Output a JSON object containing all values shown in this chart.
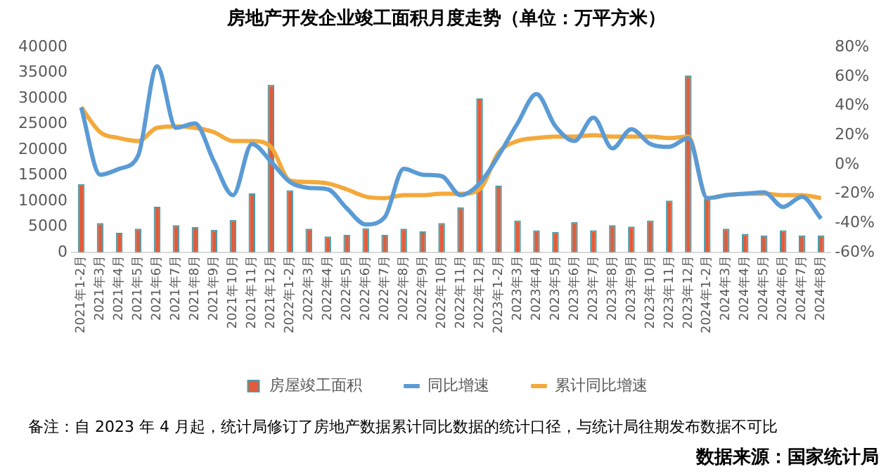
{
  "chart_data": {
    "type": "bar",
    "title": "房地产开发企业竣工面积月度走势（单位：万平方米）",
    "categories": [
      "2021年1-2月",
      "2021年3月",
      "2021年4月",
      "2021年5月",
      "2021年6月",
      "2021年7月",
      "2021年8月",
      "2021年9月",
      "2021年10月",
      "2021年11月",
      "2021年12月",
      "2022年1-2月",
      "2022年3月",
      "2022年4月",
      "2022年5月",
      "2022年6月",
      "2022年7月",
      "2022年8月",
      "2022年9月",
      "2022年10月",
      "2022年11月",
      "2022年12月",
      "2023年1-2月",
      "2023年3月",
      "2023年4月",
      "2023年5月",
      "2023年6月",
      "2023年7月",
      "2023年8月",
      "2023年9月",
      "2023年10月",
      "2023年11月",
      "2023年12月",
      "2024年1-2月",
      "2024年3月",
      "2024年4月",
      "2024年5月",
      "2024年6月",
      "2024年7月",
      "2024年8月"
    ],
    "series": [
      {
        "name": "房屋竣工面积",
        "color": "#e35b3a",
        "values": [
          13300,
          5700,
          3800,
          4600,
          8900,
          5300,
          4900,
          4400,
          6300,
          11500,
          32700,
          12100,
          4600,
          3100,
          3400,
          4700,
          3400,
          4600,
          4100,
          5700,
          8800,
          30000,
          13000,
          6200,
          4300,
          4000,
          5900,
          4300,
          5300,
          5000,
          6200,
          10100,
          34500,
          10400,
          4600,
          3600,
          3300,
          4300,
          3300,
          3300
        ]
      },
      {
        "name": "同比增速",
        "type": "line",
        "axis": "y2",
        "color": "#5b9bd5",
        "values": [
          39,
          -7,
          -3,
          6,
          67,
          25,
          28,
          2,
          -21,
          14,
          2,
          -12,
          -16,
          -17,
          -30,
          -41,
          -36,
          -3,
          -7,
          -8,
          -21,
          -13,
          6,
          28,
          48,
          26,
          16,
          32,
          11,
          24,
          14,
          12,
          18,
          -23,
          -21,
          -20,
          -19,
          -29,
          -22,
          -37
        ]
      },
      {
        "name": "累计同比增速",
        "type": "line",
        "axis": "y2",
        "color": "#f4a93b",
        "values": [
          39,
          22,
          18,
          16,
          25,
          26,
          25,
          22,
          16,
          16,
          12,
          -11,
          -12,
          -13,
          -17,
          -22,
          -23,
          -21,
          -21,
          -20,
          -20,
          -17,
          8,
          16,
          18,
          19,
          19,
          20,
          19,
          19,
          19,
          18,
          19,
          -23,
          -21,
          -20,
          -20,
          -21,
          -21,
          -23
        ]
      }
    ],
    "ylim": [
      0,
      40000
    ],
    "yticks": [
      0,
      5000,
      10000,
      15000,
      20000,
      25000,
      30000,
      35000,
      40000
    ],
    "y2lim": [
      -60,
      80
    ],
    "y2ticks": [
      {
        "value": -60,
        "label": "-60%"
      },
      {
        "value": -40,
        "label": "-40%"
      },
      {
        "value": -20,
        "label": "-20%"
      },
      {
        "value": 0,
        "label": "0%"
      },
      {
        "value": 20,
        "label": "20%"
      },
      {
        "value": 40,
        "label": "40%"
      },
      {
        "value": 60,
        "label": "60%"
      },
      {
        "value": 80,
        "label": "80%"
      }
    ],
    "grid": false,
    "legend": "bottom",
    "marker": "none",
    "line_style": "solid",
    "annotations": [
      "备注：自 2023 年 4 月起，统计局修订了房地产数据累计同比数据的统计口径，与统计局往期发布数据不可比",
      "数据来源：国家统计局"
    ]
  }
}
